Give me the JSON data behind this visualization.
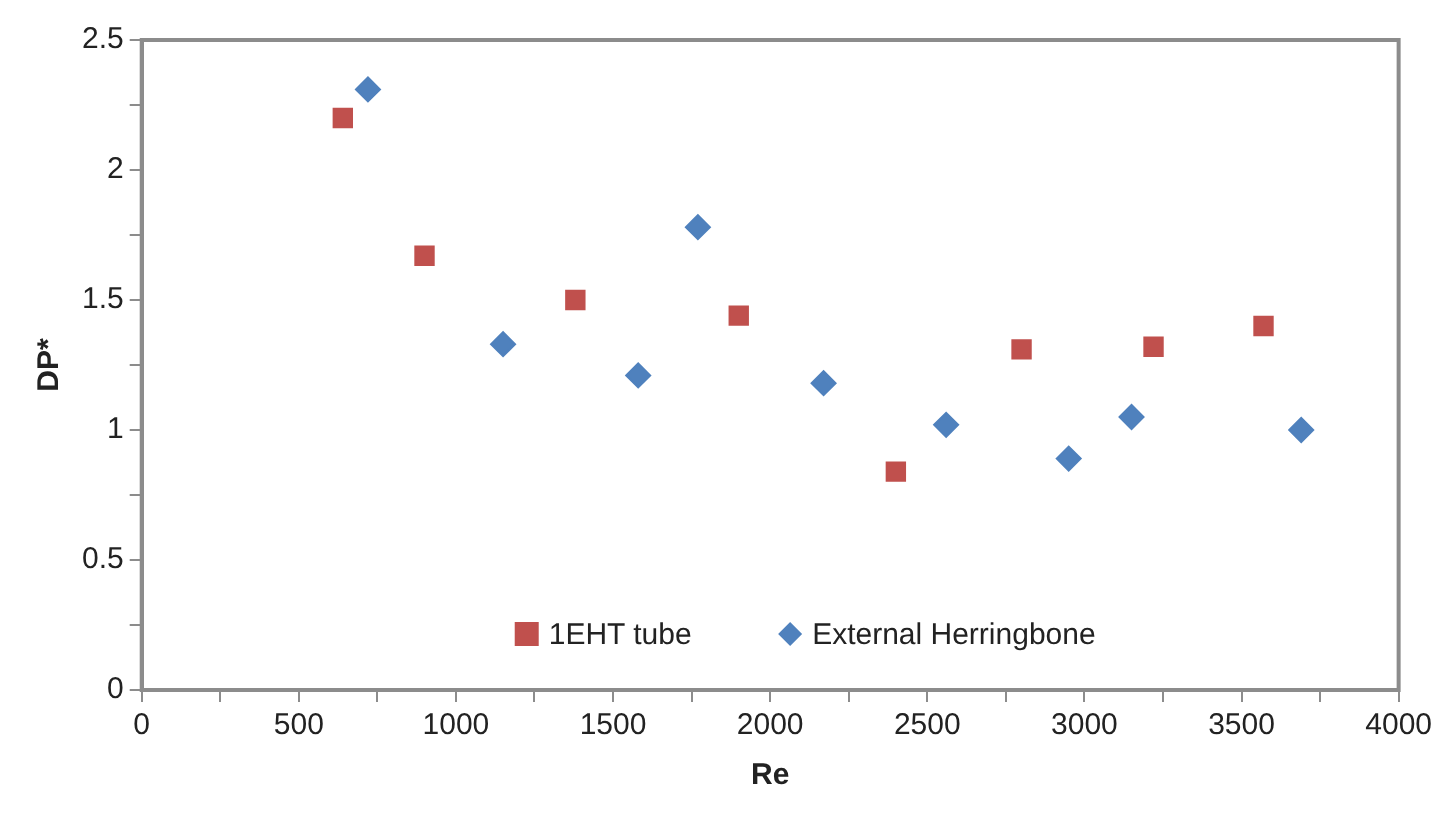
{
  "chart_data": {
    "type": "scatter",
    "xlabel": "Re",
    "ylabel": "DP*",
    "series": [
      {
        "name": "1EHT tube",
        "color": "#c0504d",
        "marker": "square",
        "x": [
          640,
          900,
          1380,
          1900,
          2400,
          2800,
          3220,
          3570
        ],
        "values": [
          2.2,
          1.67,
          1.5,
          1.44,
          0.84,
          1.31,
          1.32,
          1.4
        ]
      },
      {
        "name": "External Herringbone",
        "color": "#4f81bd",
        "marker": "diamond",
        "x": [
          720,
          1150,
          1580,
          1770,
          2170,
          2560,
          2950,
          3150,
          3690
        ],
        "values": [
          2.31,
          1.33,
          1.21,
          1.78,
          1.18,
          1.02,
          0.89,
          1.05,
          1.0
        ]
      }
    ],
    "xlim": [
      0,
      4000
    ],
    "xticks": [
      0,
      {
        "value": 250,
        "label": null
      },
      500,
      {
        "value": 750,
        "label": null
      },
      1000,
      {
        "value": 1250,
        "label": null
      },
      1500,
      {
        "value": 1750,
        "label": null
      },
      2000,
      {
        "value": 2250,
        "label": null
      },
      2500,
      {
        "value": 2750,
        "label": null
      },
      3000,
      {
        "value": 3250,
        "label": null
      },
      3500,
      {
        "value": 3750,
        "label": null
      },
      4000
    ],
    "ylim": [
      0,
      2.5
    ],
    "yticks": [
      0,
      {
        "value": 0.25,
        "label": null
      },
      0.5,
      {
        "value": 0.75,
        "label": null
      },
      1,
      {
        "value": 1.25,
        "label": null
      },
      1.5,
      {
        "value": 1.75,
        "label": null
      },
      2,
      {
        "value": 2.25,
        "label": null
      },
      2.5
    ],
    "grid": false,
    "legend": "bottom"
  }
}
